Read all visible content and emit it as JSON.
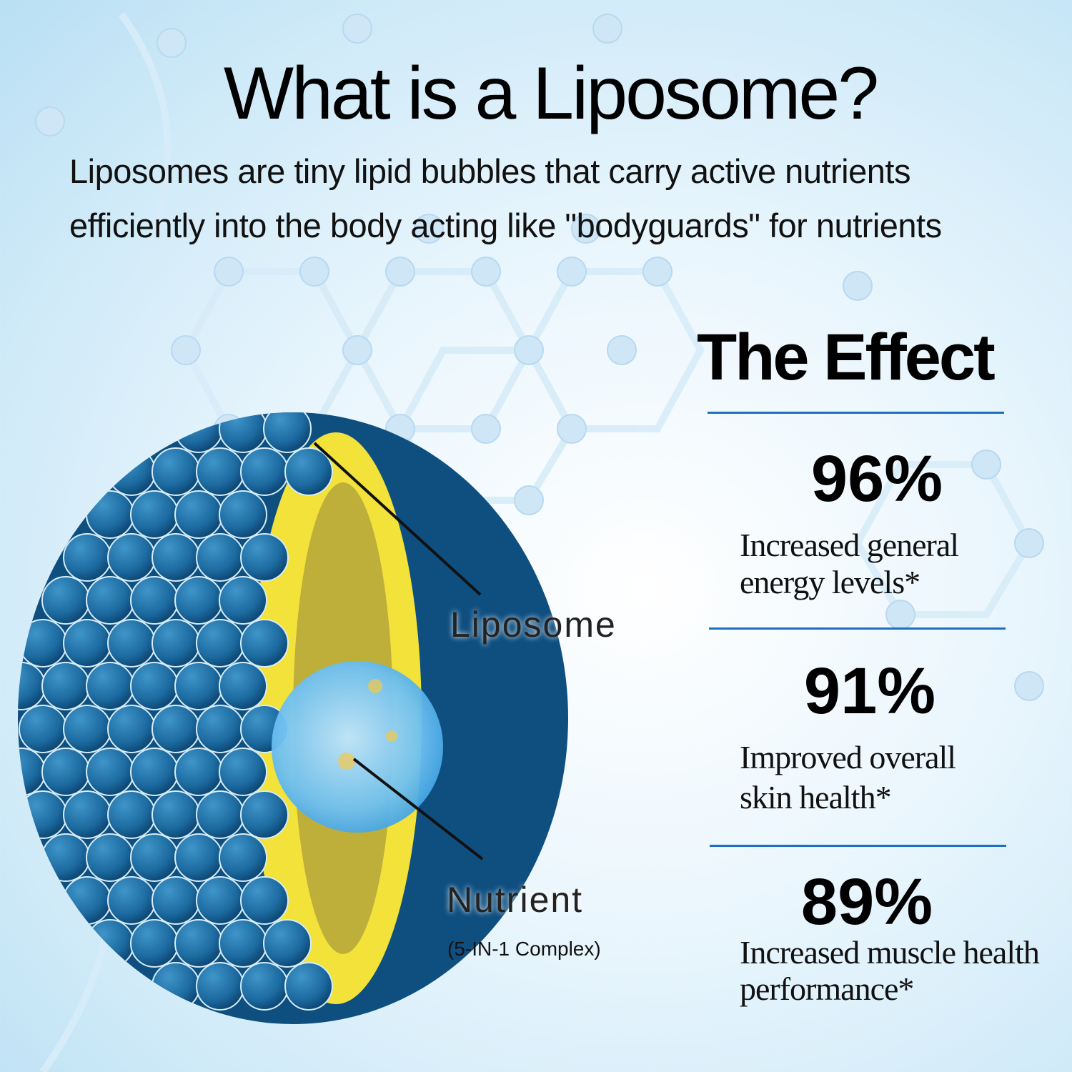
{
  "header": {
    "title": "What is a Liposome?",
    "subtitle_lines": [
      "Liposomes are tiny lipid bubbles that carry active nutrients",
      "efficiently into the body acting like \"bodyguards\" for nutrients"
    ]
  },
  "diagram": {
    "liposome_label": "Liposome",
    "nutrient_label": "Nutrient",
    "nutrient_sublabel": "(5-IN-1 Complex)"
  },
  "effect": {
    "heading": "The Effect",
    "items": [
      {
        "percent": "96%",
        "lines": [
          "Increased general",
          "energy levels*"
        ]
      },
      {
        "percent": "91%",
        "lines": [
          "Improved overall",
          "skin health*"
        ]
      },
      {
        "percent": "89%",
        "lines": [
          "Increased muscle health",
          "performance*"
        ]
      }
    ]
  },
  "colors": {
    "accent": "#1e6fbf",
    "sphere_blue": "#1d6fa5",
    "lipid_yellow": "#f2e23a"
  }
}
